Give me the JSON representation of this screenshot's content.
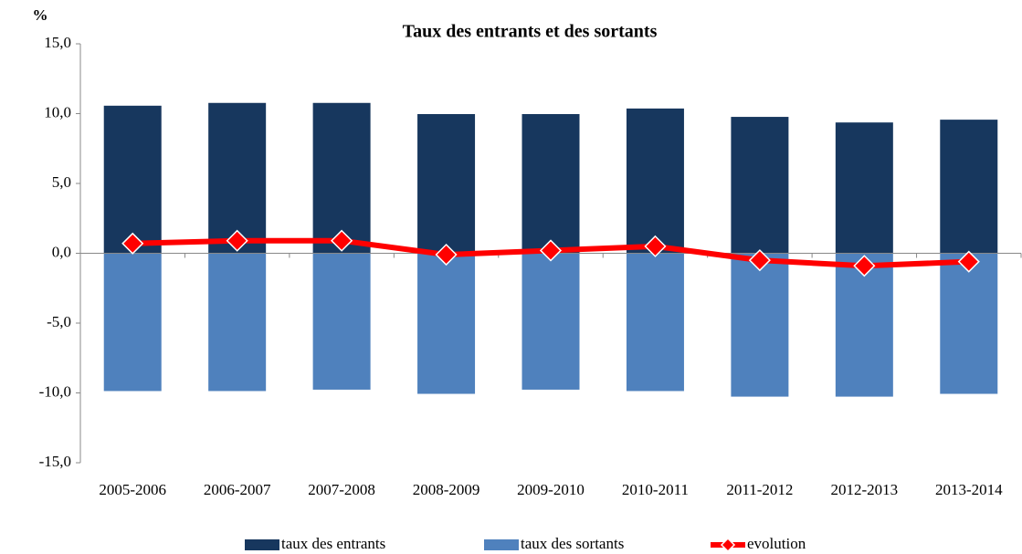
{
  "chart_data": {
    "type": "bar_line",
    "title": "Taux des entrants et des sortants",
    "y_label": "%",
    "categories": [
      "2005-2006",
      "2006-2007",
      "2007-2008",
      "2008-2009",
      "2009-2010",
      "2010-2011",
      "2011-2012",
      "2012-2013",
      "2013-2014"
    ],
    "series": [
      {
        "name": "taux des entrants",
        "type": "bar",
        "color": "#17375e",
        "values": [
          10.6,
          10.8,
          10.8,
          10.0,
          10.0,
          10.4,
          9.8,
          9.4,
          9.6
        ]
      },
      {
        "name": "taux des sortants",
        "type": "bar",
        "color": "#4f81bd",
        "values": [
          -9.9,
          -9.9,
          -9.8,
          -10.1,
          -9.8,
          -9.9,
          -10.3,
          -10.3,
          -10.1
        ]
      },
      {
        "name": "evolution",
        "type": "line",
        "color": "#ff0000",
        "values": [
          0.7,
          0.9,
          0.9,
          -0.1,
          0.2,
          0.5,
          -0.5,
          -0.9,
          -0.6
        ]
      }
    ],
    "ylim": [
      -15,
      15
    ],
    "yticks": [
      {
        "value": -15,
        "label": "-15,0"
      },
      {
        "value": -10,
        "label": "-10,0"
      },
      {
        "value": -5,
        "label": "-5,0"
      },
      {
        "value": 0,
        "label": "0,0"
      },
      {
        "value": 5,
        "label": "5,0"
      },
      {
        "value": 10,
        "label": "10,0"
      },
      {
        "value": 15,
        "label": "15,0"
      }
    ],
    "legend": "bottom"
  }
}
